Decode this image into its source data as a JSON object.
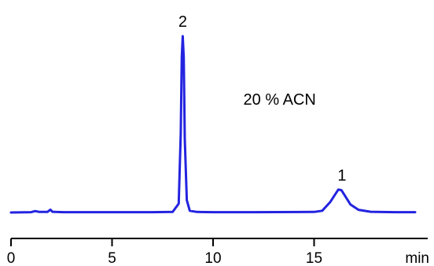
{
  "chart_data": {
    "type": "line",
    "xlabel": "min",
    "xlim": [
      0,
      20
    ],
    "ylim": [
      0,
      1
    ],
    "xticks": [
      0,
      5,
      10,
      15
    ],
    "grid": false,
    "series": [
      {
        "color": "#2323e0",
        "x": [
          0,
          1.0,
          1.2,
          1.4,
          1.8,
          1.95,
          2.05,
          2.2,
          2.6,
          3.5,
          5.0,
          7.0,
          8.0,
          8.3,
          8.4,
          8.45,
          8.5,
          8.55,
          8.6,
          8.7,
          8.85,
          9.2,
          10.0,
          12.0,
          15.0,
          15.4,
          15.8,
          16.0,
          16.2,
          16.35,
          16.5,
          16.8,
          17.2,
          17.8,
          19.0,
          20.0
        ],
        "y": [
          0.0,
          0.002,
          0.008,
          0.003,
          0.003,
          0.016,
          0.004,
          0.003,
          0.002,
          0.002,
          0.002,
          0.002,
          0.003,
          0.05,
          0.45,
          0.88,
          1.0,
          0.88,
          0.42,
          0.07,
          0.01,
          0.003,
          0.002,
          0.002,
          0.003,
          0.01,
          0.06,
          0.095,
          0.13,
          0.127,
          0.1,
          0.045,
          0.015,
          0.004,
          0.002,
          0.002
        ]
      }
    ],
    "peaks": [
      {
        "label": "2",
        "x": 8.5
      },
      {
        "label": "1",
        "x": 16.3
      }
    ],
    "annotation": "20 % ACN"
  }
}
